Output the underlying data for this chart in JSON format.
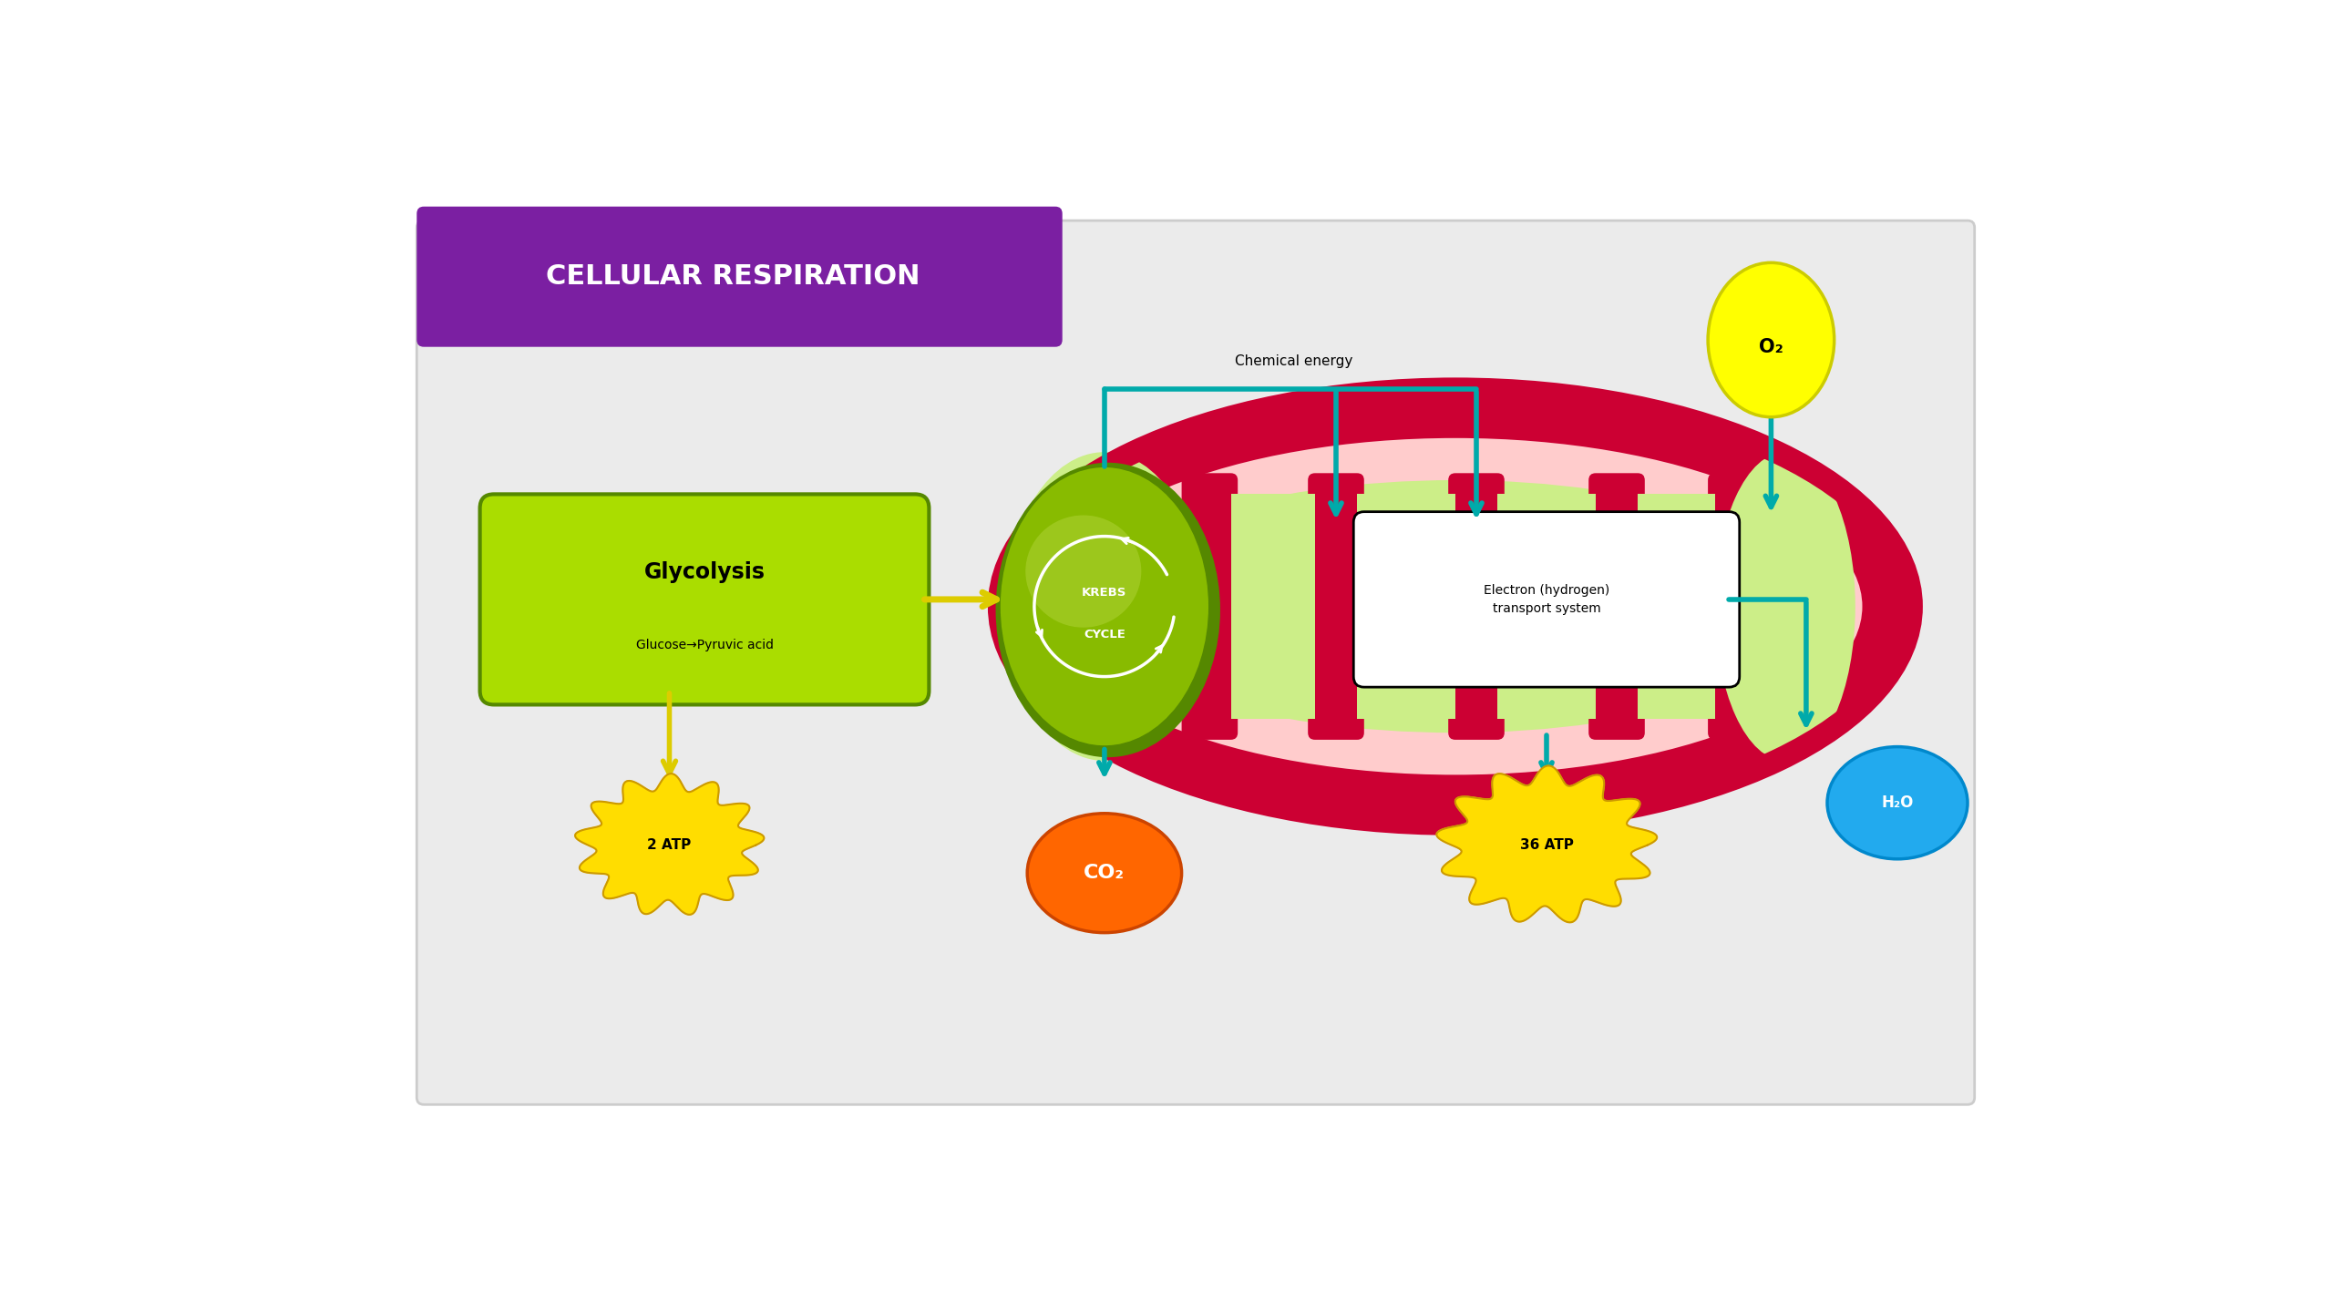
{
  "bg_color": "#ebebeb",
  "white_bg": "#ffffff",
  "title_text": "CELLULAR RESPIRATION",
  "title_bg": "#7b1fa2",
  "title_text_color": "#ffffff",
  "glycolysis_text": "Glycolysis",
  "glycolysis_subtext": "Glucose→Pyruvic acid",
  "krebs_text": "KREBS\nCYCLE",
  "electron_box_text": "Electron (hydrogen)\ntransport system",
  "chemical_energy_text": "Chemical energy",
  "atp2_text": "2 ATP",
  "atp36_text": "36 ATP",
  "co2_text": "CO₂",
  "o2_text": "O₂",
  "h2o_text": "H₂O",
  "arrow_color": "#00aaaa",
  "yellow_arrow_color": "#ddcc00",
  "mito_outer_color": "#cc0033",
  "mito_inner_light": "#ffcccc",
  "mito_matrix_color": "#ccee88",
  "glyc_green_light": "#aadd00",
  "glyc_green_dark": "#558800",
  "krebs_green_dark": "#558800",
  "krebs_green_light": "#88bb00",
  "atp_blob_color": "#ffdd00",
  "atp_edge_color": "#cc9900",
  "co2_color": "#ff6600",
  "co2_edge": "#cc4400",
  "o2_fill": "#ffff00",
  "o2_edge": "#cccc00",
  "h2o_fill": "#22aaee",
  "h2o_edge": "#0088cc",
  "panel_edge": "#cccccc"
}
